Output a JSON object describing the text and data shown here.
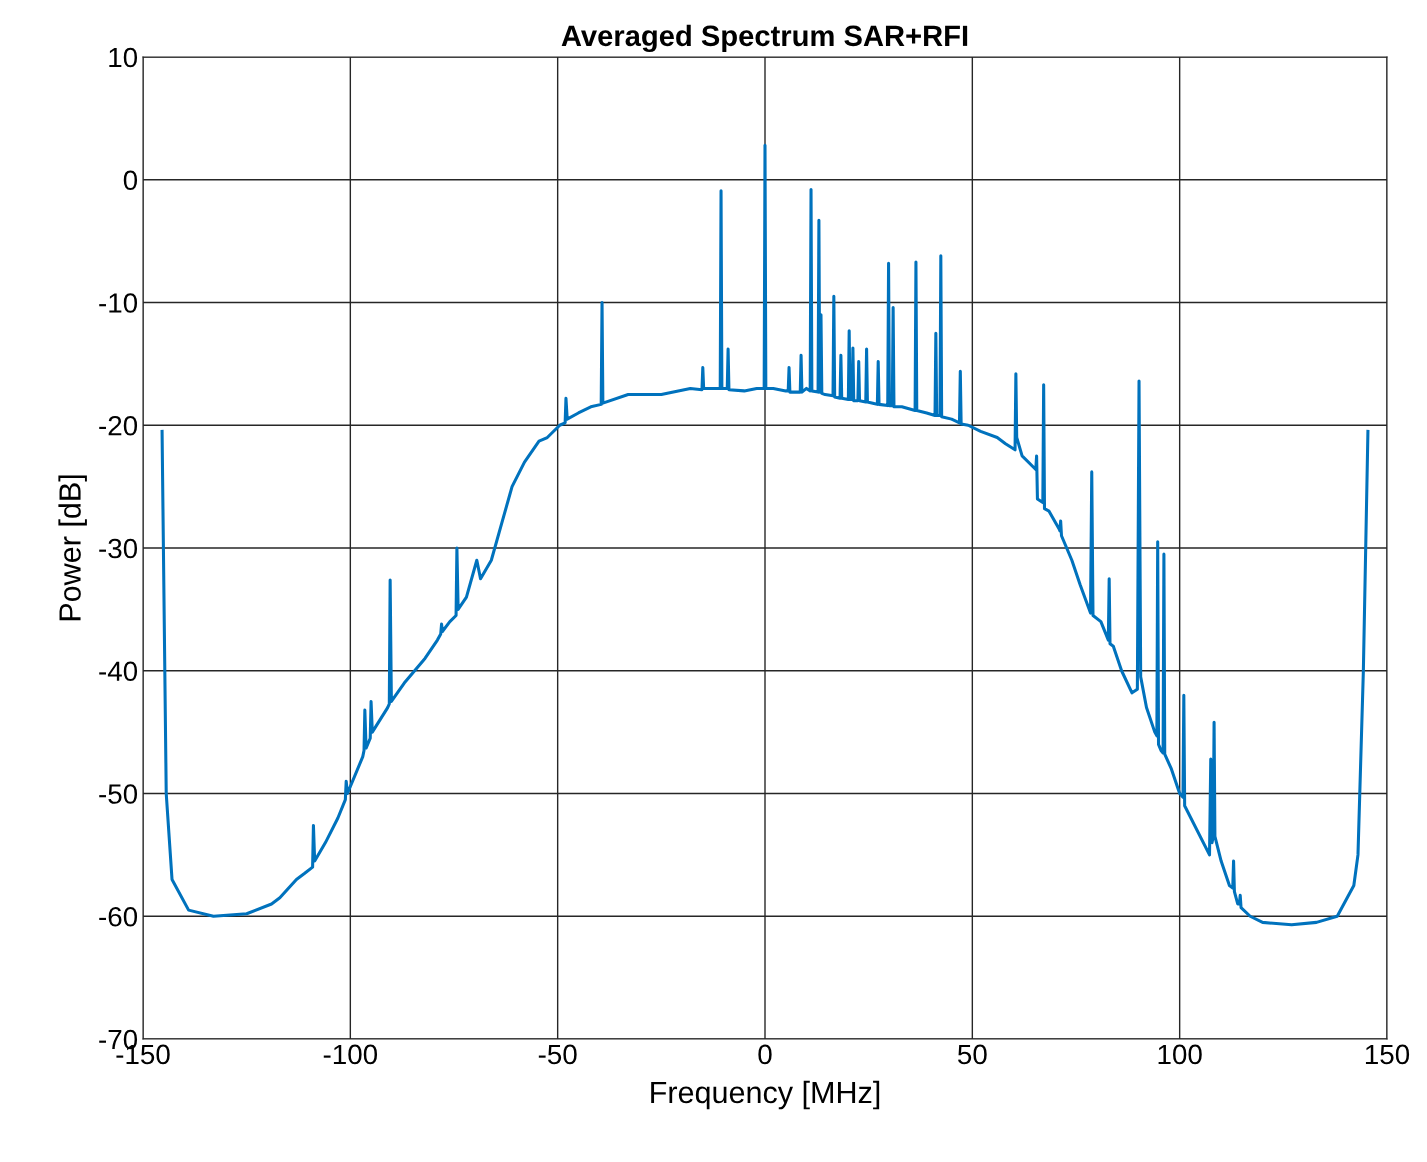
{
  "chart_data": {
    "type": "line",
    "title": "Averaged Spectrum SAR+RFI",
    "xlabel": "Frequency [MHz]",
    "ylabel": "Power [dB]",
    "xlim": [
      -150,
      150
    ],
    "xticks": [
      -150,
      -100,
      -50,
      0,
      50,
      100,
      150
    ],
    "ylim": [
      -70,
      10
    ],
    "yticks": [
      -70,
      -60,
      -50,
      -40,
      -30,
      -20,
      -10,
      0,
      10
    ],
    "grid": true,
    "legend": false,
    "marker": "none",
    "line_style": "solid",
    "series": [
      {
        "color": "#0072bd",
        "x": [
          -145.4,
          -144.4,
          -143,
          -139,
          -133,
          -125,
          -119,
          -117,
          -113,
          -111,
          -109.1,
          -108.9,
          -108.6,
          -106,
          -103,
          -101.2,
          -101,
          -100.7,
          -97,
          -96.7,
          -96.5,
          -96.2,
          -95.2,
          -95,
          -94.7,
          -91,
          -90.6,
          -90.4,
          -90.1,
          -87,
          -82,
          -79,
          -78.2,
          -78,
          -77.8,
          -76,
          -74.5,
          -74.3,
          -74,
          -72,
          -69.5,
          -68.6,
          -66,
          -63.5,
          -61,
          -58,
          -54.5,
          -52.5,
          -49.5,
          -48.2,
          -48,
          -47.7,
          -45,
          -42,
          -39.5,
          -39.3,
          -39.1,
          -33,
          -25,
          -18,
          -15.2,
          -15,
          -14.8,
          -13,
          -10.8,
          -10.6,
          -10.4,
          -9.1,
          -8.9,
          -8.7,
          -5,
          -2,
          -0.2,
          0,
          0.2,
          2,
          5,
          5.6,
          5.8,
          6,
          8.5,
          8.7,
          8.9,
          10,
          10.9,
          11.1,
          11.3,
          12.8,
          13,
          13.2,
          13.3,
          13.5,
          13.7,
          14.5,
          16.4,
          16.6,
          16.8,
          18.1,
          18.3,
          18.5,
          20.1,
          20.3,
          20.5,
          21,
          21.2,
          21.4,
          22.4,
          22.6,
          22.8,
          24.3,
          24.5,
          24.7,
          26,
          27.1,
          27.3,
          27.5,
          29.6,
          29.8,
          30,
          30.7,
          30.9,
          31.1,
          33,
          36.2,
          36.4,
          36.6,
          39,
          41,
          41.2,
          41.4,
          42.2,
          42.4,
          42.6,
          45,
          46.9,
          47.1,
          47.3,
          49,
          52,
          56,
          58,
          60.3,
          60.5,
          60.7,
          62,
          65,
          65.3,
          65.5,
          65.7,
          67,
          67.2,
          67.4,
          68.5,
          71,
          71.1,
          71.3,
          71.5,
          74,
          76,
          78.5,
          78.8,
          79.1,
          81,
          82.8,
          83,
          83.2,
          84,
          86,
          88.5,
          89.8,
          90.2,
          90.6,
          92,
          94,
          94.5,
          94.7,
          94.9,
          95.5,
          96,
          96.2,
          96.4,
          98,
          100,
          100.8,
          101,
          101.2,
          107.2,
          107.5,
          107.8,
          108.1,
          108.3,
          108.5,
          110,
          112,
          112.8,
          113,
          113.2,
          114,
          114.4,
          114.6,
          114.8,
          117,
          120,
          127,
          133,
          138,
          142,
          143,
          144.3,
          145.4
        ],
        "values": [
          -20.5,
          -50,
          -57,
          -59.5,
          -60,
          -59.8,
          -59,
          -58.5,
          -57,
          -56.5,
          -56,
          -52.6,
          -55.5,
          -54,
          -52,
          -50.5,
          -49,
          -50,
          -47,
          -46.5,
          -43.2,
          -46.3,
          -45.5,
          -42.5,
          -45,
          -43,
          -42.7,
          -32.6,
          -42.5,
          -41,
          -39,
          -37.5,
          -37,
          -36.2,
          -36.8,
          -36,
          -35.5,
          -30,
          -35,
          -34,
          -31,
          -32.5,
          -31,
          -28,
          -25,
          -23,
          -21.3,
          -21,
          -20,
          -19.8,
          -17.8,
          -19.5,
          -19,
          -18.5,
          -18.3,
          -10,
          -18.2,
          -17.5,
          -17.5,
          -17,
          -17.1,
          -15.3,
          -17,
          -17,
          -17,
          -0.9,
          -17,
          -17,
          -13.8,
          -17.1,
          -17.2,
          -17,
          -17,
          2.8,
          -17,
          -17,
          -17.2,
          -17.2,
          -15.3,
          -17.3,
          -17.3,
          -14.3,
          -17.3,
          -17,
          -17.2,
          -0.8,
          -17.2,
          -17.3,
          -3.3,
          -17.3,
          -17.3,
          -11,
          -17.4,
          -17.5,
          -17.6,
          -9.5,
          -17.7,
          -17.8,
          -14.3,
          -17.8,
          -17.9,
          -12.3,
          -17.9,
          -17.9,
          -13.7,
          -18,
          -18,
          -14.8,
          -18,
          -18.1,
          -13.8,
          -18.1,
          -18.2,
          -18.3,
          -14.8,
          -18.3,
          -18.4,
          -6.8,
          -18.4,
          -18.4,
          -10.4,
          -18.5,
          -18.5,
          -18.8,
          -6.7,
          -18.8,
          -19,
          -19.2,
          -12.5,
          -19.2,
          -19.2,
          -6.2,
          -19.3,
          -19.5,
          -19.8,
          -15.6,
          -19.9,
          -20,
          -20.5,
          -21,
          -21.5,
          -22,
          -15.8,
          -21,
          -22.5,
          -23.5,
          -23.6,
          -22.5,
          -26,
          -26.3,
          -16.7,
          -26.8,
          -27,
          -28.5,
          -28.6,
          -27.8,
          -29,
          -31,
          -33,
          -35.3,
          -23.8,
          -35.5,
          -36,
          -37.5,
          -32.5,
          -37.8,
          -38,
          -40,
          -41.8,
          -41.5,
          -16.4,
          -40.5,
          -43,
          -45,
          -45.3,
          -29.5,
          -46,
          -46.5,
          -46.7,
          -30.5,
          -46.8,
          -48,
          -50,
          -50.3,
          -42,
          -51,
          -55,
          -47.2,
          -54,
          -53.5,
          -44.2,
          -53.5,
          -55.5,
          -57.5,
          -57.7,
          -55.5,
          -58,
          -59,
          -59,
          -58.3,
          -59.3,
          -60,
          -60.5,
          -60.7,
          -60.5,
          -60,
          -57.5,
          -55,
          -40,
          -20.5
        ]
      }
    ]
  }
}
